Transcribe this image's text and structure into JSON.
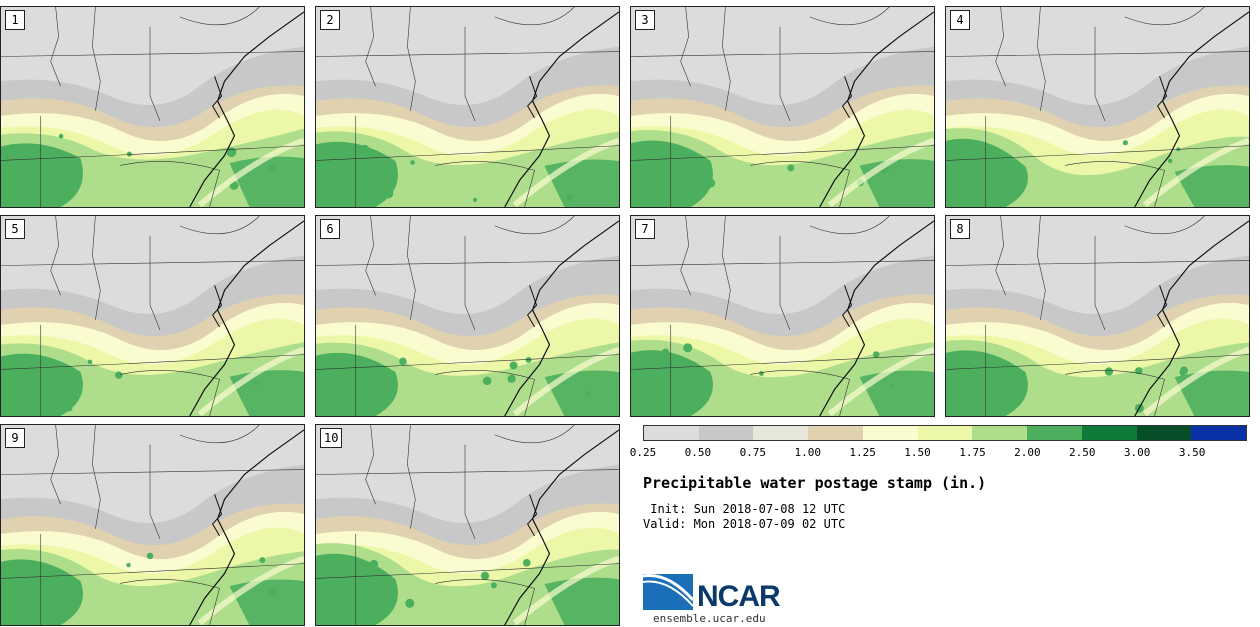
{
  "title": "Precipitable water postage stamp (in.)",
  "init_line": " Init: Sun 2018-07-08 12 UTC",
  "valid_line": "Valid: Mon 2018-07-09 02 UTC",
  "members": [
    "1",
    "2",
    "3",
    "4",
    "5",
    "6",
    "7",
    "8",
    "9",
    "10"
  ],
  "legend": {
    "colors": [
      "#dcdcdc",
      "#c8c8c8",
      "#e6e6da",
      "#e0d2b0",
      "#fbfbd0",
      "#ecf7a8",
      "#aede8c",
      "#4caf5e",
      "#0f7a3a",
      "#064d28",
      "#0a30a8"
    ],
    "ticks": [
      "0.25",
      "0.50",
      "0.75",
      "1.00",
      "1.25",
      "1.50",
      "1.75",
      "2.00",
      "2.50",
      "3.00",
      "3.50"
    ]
  },
  "logo_text": "NCAR",
  "url": "ensemble.ucar.edu"
}
